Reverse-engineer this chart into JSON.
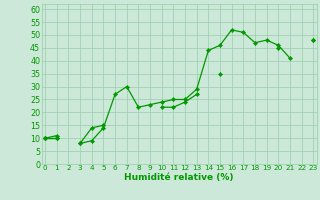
{
  "x_values": [
    0,
    1,
    2,
    3,
    4,
    5,
    6,
    7,
    8,
    9,
    10,
    11,
    12,
    13,
    14,
    15,
    16,
    17,
    18,
    19,
    20,
    21,
    22,
    23
  ],
  "line1_y": [
    10,
    10,
    null,
    8,
    9,
    14,
    27,
    30,
    22,
    23,
    24,
    25,
    25,
    29,
    44,
    46,
    52,
    51,
    47,
    48,
    46,
    41,
    null,
    48
  ],
  "line2_y": [
    10,
    11,
    null,
    8,
    14,
    15,
    null,
    null,
    null,
    null,
    22,
    22,
    24,
    27,
    null,
    35,
    null,
    null,
    null,
    null,
    45,
    null,
    null,
    null
  ],
  "line3_y": [
    10,
    10,
    null,
    null,
    null,
    null,
    null,
    null,
    null,
    null,
    null,
    null,
    null,
    null,
    null,
    null,
    null,
    null,
    null,
    null,
    null,
    null,
    null,
    48
  ],
  "background_color": "#cce8d8",
  "grid_color": "#99ccaa",
  "line_color": "#009900",
  "marker": "D",
  "marker_size": 2.2,
  "linewidth": 0.9,
  "xlabel": "Humidité relative (%)",
  "ylabel_ticks": [
    0,
    5,
    10,
    15,
    20,
    25,
    30,
    35,
    40,
    45,
    50,
    55,
    60
  ],
  "xlim": [
    -0.3,
    23.3
  ],
  "ylim": [
    0,
    62
  ],
  "xlabel_fontsize": 6.5,
  "tick_fontsize_x": 5.2,
  "tick_fontsize_y": 5.8
}
